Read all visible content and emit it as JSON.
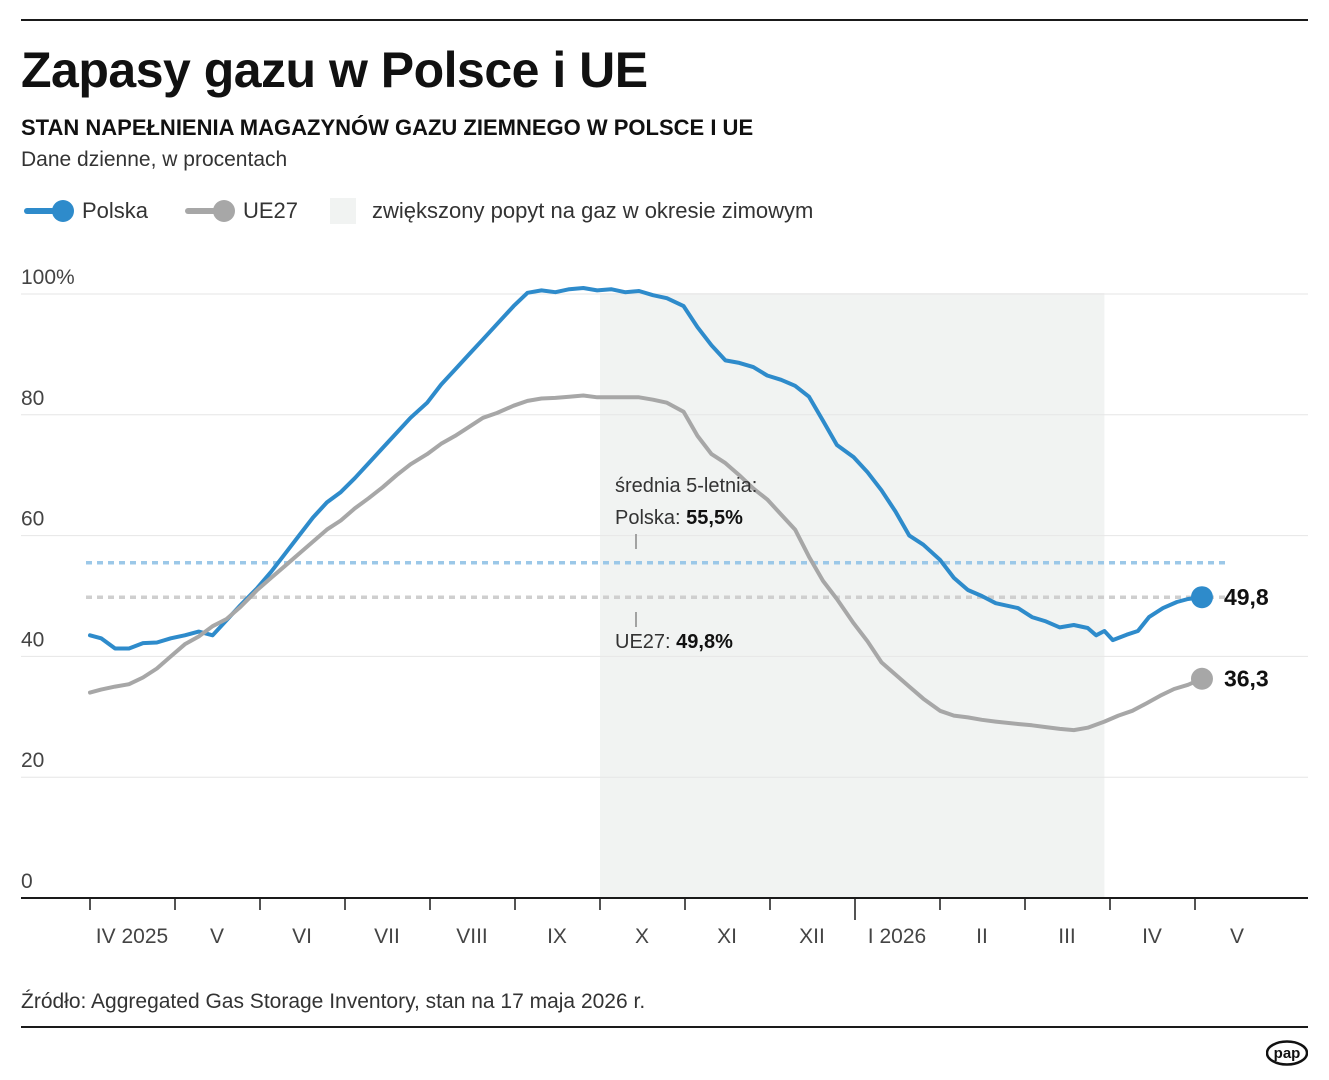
{
  "header": {
    "title": "Zapasy gazu w Polsce i UE",
    "subtitle": "STAN NAPEŁNIENIA MAGAZYNÓW GAZU ZIEMNEGO W POLSCE I UE",
    "units": "Dane dzienne, w procentach"
  },
  "legend": {
    "polska": "Polska",
    "ue27": "UE27",
    "winter": "zwiększony popyt na gaz w okresie zimowym"
  },
  "footer": {
    "source": "Źródło: Aggregated Gas Storage Inventory, stan na 17 maja 2026 r.",
    "logo_text": "pap"
  },
  "chart_data": {
    "type": "line",
    "title": "Zapasy gazu w Polsce i UE",
    "subtitle": "STAN NAPEŁNIENIA MAGAZYNÓW GAZU ZIEMNEGO W POLSCE I UE",
    "ylabel": "",
    "xlabel": "",
    "ylim": [
      0,
      100
    ],
    "y_ticks": [
      "100%",
      "80",
      "60",
      "40",
      "20",
      "0"
    ],
    "y_tick_values": [
      100,
      80,
      60,
      40,
      20,
      0
    ],
    "x_tick_labels": [
      "IV 2025",
      "V",
      "VI",
      "VII",
      "VIII",
      "IX",
      "X",
      "XI",
      "XII",
      "I 2026",
      "II",
      "III",
      "IV",
      "V"
    ],
    "grid": true,
    "legend_position": "top-left",
    "shaded_period": {
      "label": "zwiększony popyt na gaz w okresie zimowym",
      "from": "2025-10-01",
      "to": "2026-03-31"
    },
    "series": [
      {
        "name": "Polska",
        "color": "#2e8bcb",
        "points": [
          [
            "2025-04-01",
            43.5
          ],
          [
            "2025-04-05",
            43.0
          ],
          [
            "2025-04-10",
            41.3
          ],
          [
            "2025-04-15",
            41.3
          ],
          [
            "2025-04-20",
            42.2
          ],
          [
            "2025-04-25",
            42.3
          ],
          [
            "2025-04-30",
            43.0
          ],
          [
            "2025-05-05",
            43.5
          ],
          [
            "2025-05-10",
            44.1
          ],
          [
            "2025-05-15",
            43.5
          ],
          [
            "2025-05-20",
            46.0
          ],
          [
            "2025-05-25",
            48.5
          ],
          [
            "2025-05-31",
            51.3
          ],
          [
            "2025-06-05",
            54.0
          ],
          [
            "2025-06-10",
            57.0
          ],
          [
            "2025-06-15",
            60.0
          ],
          [
            "2025-06-20",
            63.0
          ],
          [
            "2025-06-25",
            65.5
          ],
          [
            "2025-06-30",
            67.2
          ],
          [
            "2025-07-05",
            69.5
          ],
          [
            "2025-07-10",
            72.0
          ],
          [
            "2025-07-15",
            74.5
          ],
          [
            "2025-07-20",
            77.0
          ],
          [
            "2025-07-25",
            79.5
          ],
          [
            "2025-07-31",
            82.0
          ],
          [
            "2025-08-05",
            85.0
          ],
          [
            "2025-08-10",
            87.5
          ],
          [
            "2025-08-15",
            90.0
          ],
          [
            "2025-08-20",
            92.5
          ],
          [
            "2025-08-25",
            95.0
          ],
          [
            "2025-08-31",
            98.0
          ],
          [
            "2025-09-05",
            100.2
          ],
          [
            "2025-09-10",
            100.6
          ],
          [
            "2025-09-15",
            100.3
          ],
          [
            "2025-09-20",
            100.8
          ],
          [
            "2025-09-25",
            101.0
          ],
          [
            "2025-09-30",
            100.6
          ],
          [
            "2025-10-05",
            100.8
          ],
          [
            "2025-10-10",
            100.3
          ],
          [
            "2025-10-15",
            100.5
          ],
          [
            "2025-10-20",
            99.8
          ],
          [
            "2025-10-25",
            99.3
          ],
          [
            "2025-10-31",
            98.0
          ],
          [
            "2025-11-05",
            94.5
          ],
          [
            "2025-11-10",
            91.5
          ],
          [
            "2025-11-15",
            89.0
          ],
          [
            "2025-11-20",
            88.6
          ],
          [
            "2025-11-25",
            87.9
          ],
          [
            "2025-11-30",
            86.5
          ],
          [
            "2025-12-05",
            85.8
          ],
          [
            "2025-12-10",
            84.8
          ],
          [
            "2025-12-15",
            83.0
          ],
          [
            "2025-12-20",
            79.0
          ],
          [
            "2025-12-25",
            75.0
          ],
          [
            "2025-12-31",
            73.0
          ],
          [
            "2026-01-05",
            70.5
          ],
          [
            "2026-01-10",
            67.5
          ],
          [
            "2026-01-15",
            64.0
          ],
          [
            "2026-01-20",
            60.0
          ],
          [
            "2026-01-25",
            58.5
          ],
          [
            "2026-01-31",
            56.0
          ],
          [
            "2026-02-05",
            53.0
          ],
          [
            "2026-02-10",
            51.0
          ],
          [
            "2026-02-15",
            50.0
          ],
          [
            "2026-02-20",
            48.8
          ],
          [
            "2026-02-28",
            48.0
          ],
          [
            "2026-03-05",
            46.5
          ],
          [
            "2026-03-10",
            45.8
          ],
          [
            "2026-03-15",
            44.8
          ],
          [
            "2026-03-20",
            45.2
          ],
          [
            "2026-03-25",
            44.7
          ],
          [
            "2026-03-28",
            43.5
          ],
          [
            "2026-03-31",
            44.2
          ],
          [
            "2026-04-03",
            42.7
          ],
          [
            "2026-04-08",
            43.6
          ],
          [
            "2026-04-12",
            44.2
          ],
          [
            "2026-04-16",
            46.5
          ],
          [
            "2026-04-21",
            48.0
          ],
          [
            "2026-04-26",
            49.0
          ],
          [
            "2026-04-30",
            49.5
          ],
          [
            "2026-05-05",
            49.8
          ]
        ],
        "last_value_label": "49,8"
      },
      {
        "name": "UE27",
        "color": "#a7a7a7",
        "points": [
          [
            "2025-04-01",
            34.0
          ],
          [
            "2025-04-05",
            34.5
          ],
          [
            "2025-04-10",
            35.0
          ],
          [
            "2025-04-15",
            35.4
          ],
          [
            "2025-04-20",
            36.5
          ],
          [
            "2025-04-25",
            38.0
          ],
          [
            "2025-04-30",
            40.0
          ],
          [
            "2025-05-05",
            42.0
          ],
          [
            "2025-05-10",
            43.3
          ],
          [
            "2025-05-15",
            45.0
          ],
          [
            "2025-05-20",
            46.2
          ],
          [
            "2025-05-25",
            48.2
          ],
          [
            "2025-05-31",
            51.0
          ],
          [
            "2025-06-05",
            53.0
          ],
          [
            "2025-06-10",
            55.0
          ],
          [
            "2025-06-15",
            57.0
          ],
          [
            "2025-06-20",
            59.0
          ],
          [
            "2025-06-25",
            61.0
          ],
          [
            "2025-06-30",
            62.5
          ],
          [
            "2025-07-05",
            64.5
          ],
          [
            "2025-07-10",
            66.2
          ],
          [
            "2025-07-15",
            68.0
          ],
          [
            "2025-07-20",
            70.0
          ],
          [
            "2025-07-25",
            71.8
          ],
          [
            "2025-07-31",
            73.5
          ],
          [
            "2025-08-05",
            75.2
          ],
          [
            "2025-08-10",
            76.5
          ],
          [
            "2025-08-15",
            78.0
          ],
          [
            "2025-08-20",
            79.5
          ],
          [
            "2025-08-25",
            80.3
          ],
          [
            "2025-08-31",
            81.5
          ],
          [
            "2025-09-05",
            82.3
          ],
          [
            "2025-09-10",
            82.7
          ],
          [
            "2025-09-15",
            82.8
          ],
          [
            "2025-09-20",
            83.0
          ],
          [
            "2025-09-25",
            83.2
          ],
          [
            "2025-09-30",
            82.9
          ],
          [
            "2025-10-05",
            82.9
          ],
          [
            "2025-10-10",
            82.9
          ],
          [
            "2025-10-15",
            82.9
          ],
          [
            "2025-10-20",
            82.5
          ],
          [
            "2025-10-25",
            82.0
          ],
          [
            "2025-10-31",
            80.5
          ],
          [
            "2025-11-05",
            76.5
          ],
          [
            "2025-11-10",
            73.5
          ],
          [
            "2025-11-15",
            72.0
          ],
          [
            "2025-11-20",
            70.0
          ],
          [
            "2025-11-25",
            67.8
          ],
          [
            "2025-11-30",
            66.0
          ],
          [
            "2025-12-05",
            63.5
          ],
          [
            "2025-12-10",
            61.0
          ],
          [
            "2025-12-15",
            56.5
          ],
          [
            "2025-12-20",
            52.5
          ],
          [
            "2025-12-25",
            49.5
          ],
          [
            "2025-12-31",
            45.5
          ],
          [
            "2026-01-05",
            42.5
          ],
          [
            "2026-01-10",
            39.0
          ],
          [
            "2026-01-15",
            37.0
          ],
          [
            "2026-01-20",
            35.0
          ],
          [
            "2026-01-25",
            33.0
          ],
          [
            "2026-01-31",
            31.0
          ],
          [
            "2026-02-05",
            30.2
          ],
          [
            "2026-02-10",
            29.9
          ],
          [
            "2026-02-15",
            29.5
          ],
          [
            "2026-02-20",
            29.2
          ],
          [
            "2026-02-28",
            28.8
          ],
          [
            "2026-03-05",
            28.6
          ],
          [
            "2026-03-10",
            28.3
          ],
          [
            "2026-03-15",
            28.0
          ],
          [
            "2026-03-20",
            27.8
          ],
          [
            "2026-03-25",
            28.2
          ],
          [
            "2026-03-31",
            29.2
          ],
          [
            "2026-04-05",
            30.2
          ],
          [
            "2026-04-10",
            31.0
          ],
          [
            "2026-04-15",
            32.2
          ],
          [
            "2026-04-20",
            33.5
          ],
          [
            "2026-04-25",
            34.6
          ],
          [
            "2026-04-30",
            35.3
          ],
          [
            "2026-05-05",
            36.3
          ]
        ],
        "last_value_label": "36,3"
      }
    ],
    "reference_lines": [
      {
        "series": "Polska",
        "value": 55.5,
        "label_prefix": "Polska:",
        "label_value": "55,5%",
        "color": "#9cc8e8"
      },
      {
        "series": "UE27",
        "value": 49.8,
        "label_prefix": "UE27:",
        "label_value": "49,8%",
        "color": "#cfcfcf"
      }
    ],
    "reference_title": "średnia 5-letnia:"
  }
}
